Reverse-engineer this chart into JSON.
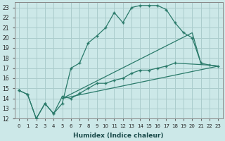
{
  "xlabel": "Humidex (Indice chaleur)",
  "bg_color": "#cce8e8",
  "grid_color": "#aacccc",
  "line_color": "#2a7a6a",
  "xlim": [
    -0.5,
    23.5
  ],
  "ylim": [
    12,
    23.5
  ],
  "xticks": [
    0,
    1,
    2,
    3,
    4,
    5,
    6,
    7,
    8,
    9,
    10,
    11,
    12,
    13,
    14,
    15,
    16,
    17,
    18,
    19,
    20,
    21,
    22,
    23
  ],
  "yticks": [
    12,
    13,
    14,
    15,
    16,
    17,
    18,
    19,
    20,
    21,
    22,
    23
  ],
  "line1_x": [
    0,
    1,
    2,
    3,
    4,
    5,
    6,
    7,
    8,
    9,
    10,
    11,
    12,
    13,
    14,
    15,
    16,
    17,
    18,
    19,
    20,
    21
  ],
  "line1_y": [
    14.8,
    14.4,
    12.0,
    13.5,
    12.5,
    13.5,
    17.0,
    17.5,
    19.5,
    20.2,
    21.0,
    22.5,
    21.5,
    23.0,
    23.2,
    23.2,
    23.2,
    22.8,
    21.5,
    20.5,
    20.0,
    17.5
  ],
  "line2_x": [
    0,
    1,
    2,
    3,
    4,
    5,
    6,
    7,
    8,
    9,
    10,
    11,
    12,
    13,
    14,
    15,
    16,
    17,
    18,
    22,
    23
  ],
  "line2_y": [
    14.8,
    14.4,
    12.0,
    13.5,
    12.5,
    14.2,
    14.0,
    14.5,
    15.0,
    15.5,
    15.5,
    15.8,
    16.0,
    16.5,
    16.8,
    16.8,
    17.0,
    17.2,
    17.5,
    17.3,
    17.2
  ],
  "line3_x": [
    5,
    23
  ],
  "line3_y": [
    14.0,
    17.2
  ],
  "line4_x": [
    5,
    20,
    21,
    22,
    23
  ],
  "line4_y": [
    14.0,
    20.5,
    17.5,
    17.3,
    17.2
  ]
}
